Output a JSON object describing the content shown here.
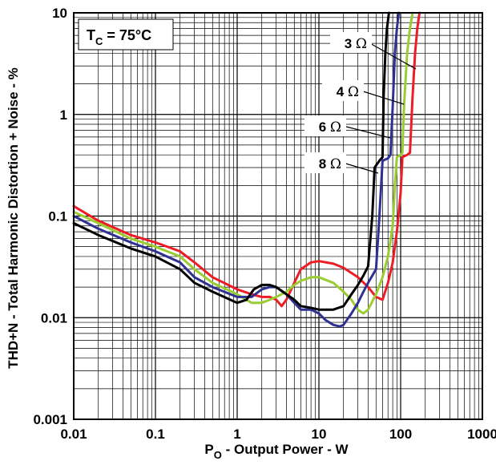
{
  "chart_data": {
    "type": "line",
    "x_scale": "log",
    "y_scale": "log",
    "xlim": [
      0.01,
      1000
    ],
    "ylim": [
      0.001,
      10
    ],
    "grid": true,
    "x_ticks": [
      "0.01",
      "0.1",
      "1",
      "10",
      "100",
      "1000"
    ],
    "y_ticks": [
      "0.001",
      "0.01",
      "0.1",
      "1",
      "10"
    ],
    "xlabel": {
      "main": "P",
      "sub": "O",
      "rest": " - Output Power - W"
    },
    "ylabel": "THD+N - Total Harmonic Distortion + Noise - %",
    "condition": {
      "main": "T",
      "sub": "C",
      "rest": " = 75°C"
    },
    "series": [
      {
        "name": "3 Ω",
        "color": "#ee1c25",
        "points": [
          [
            0.01,
            0.125
          ],
          [
            0.02,
            0.09
          ],
          [
            0.05,
            0.065
          ],
          [
            0.1,
            0.055
          ],
          [
            0.2,
            0.045
          ],
          [
            0.3,
            0.035
          ],
          [
            0.5,
            0.025
          ],
          [
            1,
            0.019
          ],
          [
            1.5,
            0.017
          ],
          [
            2,
            0.016
          ],
          [
            2.5,
            0.016
          ],
          [
            3,
            0.015
          ],
          [
            3.5,
            0.013
          ],
          [
            4,
            0.015
          ],
          [
            5,
            0.022
          ],
          [
            6,
            0.03
          ],
          [
            8,
            0.035
          ],
          [
            10,
            0.036
          ],
          [
            15,
            0.034
          ],
          [
            20,
            0.031
          ],
          [
            30,
            0.025
          ],
          [
            40,
            0.02
          ],
          [
            50,
            0.016
          ],
          [
            60,
            0.015
          ],
          [
            70,
            0.022
          ],
          [
            80,
            0.035
          ],
          [
            90,
            0.07
          ],
          [
            100,
            0.17
          ],
          [
            105,
            0.38
          ],
          [
            120,
            0.4
          ],
          [
            130,
            0.42
          ],
          [
            140,
            1.5
          ],
          [
            150,
            4
          ],
          [
            160,
            7
          ],
          [
            170,
            10
          ]
        ]
      },
      {
        "name": "4 Ω",
        "color": "#9acd32",
        "points": [
          [
            0.01,
            0.11
          ],
          [
            0.02,
            0.085
          ],
          [
            0.05,
            0.06
          ],
          [
            0.1,
            0.05
          ],
          [
            0.2,
            0.04
          ],
          [
            0.3,
            0.03
          ],
          [
            0.5,
            0.022
          ],
          [
            1,
            0.017
          ],
          [
            1.5,
            0.014
          ],
          [
            2,
            0.014
          ],
          [
            2.5,
            0.015
          ],
          [
            3,
            0.016
          ],
          [
            4,
            0.018
          ],
          [
            5,
            0.021
          ],
          [
            6,
            0.023
          ],
          [
            8,
            0.025
          ],
          [
            10,
            0.025
          ],
          [
            15,
            0.022
          ],
          [
            20,
            0.018
          ],
          [
            25,
            0.015
          ],
          [
            30,
            0.012
          ],
          [
            35,
            0.011
          ],
          [
            40,
            0.012
          ],
          [
            50,
            0.017
          ],
          [
            60,
            0.025
          ],
          [
            70,
            0.04
          ],
          [
            80,
            0.08
          ],
          [
            85,
            0.2
          ],
          [
            90,
            0.38
          ],
          [
            100,
            0.4
          ],
          [
            105,
            0.42
          ],
          [
            110,
            1.2
          ],
          [
            120,
            4
          ],
          [
            130,
            7
          ],
          [
            140,
            10
          ]
        ]
      },
      {
        "name": "6 Ω",
        "color": "#2e3192",
        "points": [
          [
            0.01,
            0.1
          ],
          [
            0.02,
            0.075
          ],
          [
            0.05,
            0.055
          ],
          [
            0.1,
            0.045
          ],
          [
            0.2,
            0.035
          ],
          [
            0.3,
            0.025
          ],
          [
            0.5,
            0.02
          ],
          [
            1,
            0.016
          ],
          [
            1.5,
            0.016
          ],
          [
            2,
            0.019
          ],
          [
            2.5,
            0.02
          ],
          [
            3,
            0.02
          ],
          [
            4,
            0.017
          ],
          [
            5,
            0.014
          ],
          [
            6,
            0.012
          ],
          [
            8,
            0.012
          ],
          [
            10,
            0.011
          ],
          [
            12,
            0.0095
          ],
          [
            15,
            0.0085
          ],
          [
            18,
            0.0082
          ],
          [
            20,
            0.0085
          ],
          [
            25,
            0.011
          ],
          [
            30,
            0.014
          ],
          [
            35,
            0.018
          ],
          [
            40,
            0.022
          ],
          [
            50,
            0.03
          ],
          [
            55,
            0.1
          ],
          [
            60,
            0.35
          ],
          [
            70,
            0.37
          ],
          [
            75,
            0.4
          ],
          [
            80,
            1.2
          ],
          [
            85,
            4
          ],
          [
            90,
            7
          ],
          [
            95,
            10
          ]
        ]
      },
      {
        "name": "8 Ω",
        "color": "#000000",
        "points": [
          [
            0.01,
            0.085
          ],
          [
            0.02,
            0.065
          ],
          [
            0.05,
            0.048
          ],
          [
            0.1,
            0.04
          ],
          [
            0.2,
            0.03
          ],
          [
            0.3,
            0.022
          ],
          [
            0.5,
            0.018
          ],
          [
            1,
            0.014
          ],
          [
            1.3,
            0.015
          ],
          [
            1.6,
            0.019
          ],
          [
            2,
            0.021
          ],
          [
            2.5,
            0.021
          ],
          [
            3,
            0.02
          ],
          [
            4,
            0.017
          ],
          [
            5,
            0.015
          ],
          [
            6,
            0.013
          ],
          [
            8,
            0.0125
          ],
          [
            10,
            0.012
          ],
          [
            15,
            0.012
          ],
          [
            20,
            0.013
          ],
          [
            25,
            0.017
          ],
          [
            30,
            0.021
          ],
          [
            35,
            0.026
          ],
          [
            40,
            0.032
          ],
          [
            45,
            0.1
          ],
          [
            48,
            0.3
          ],
          [
            55,
            0.35
          ],
          [
            60,
            0.38
          ],
          [
            62,
            1.5
          ],
          [
            65,
            4
          ],
          [
            68,
            7
          ],
          [
            72,
            10
          ]
        ]
      }
    ]
  },
  "annotations": [
    {
      "label": "3",
      "unit": "Ω",
      "series": 0
    },
    {
      "label": "4",
      "unit": "Ω",
      "series": 1
    },
    {
      "label": "6",
      "unit": "Ω",
      "series": 2
    },
    {
      "label": "8",
      "unit": "Ω",
      "series": 3
    }
  ]
}
